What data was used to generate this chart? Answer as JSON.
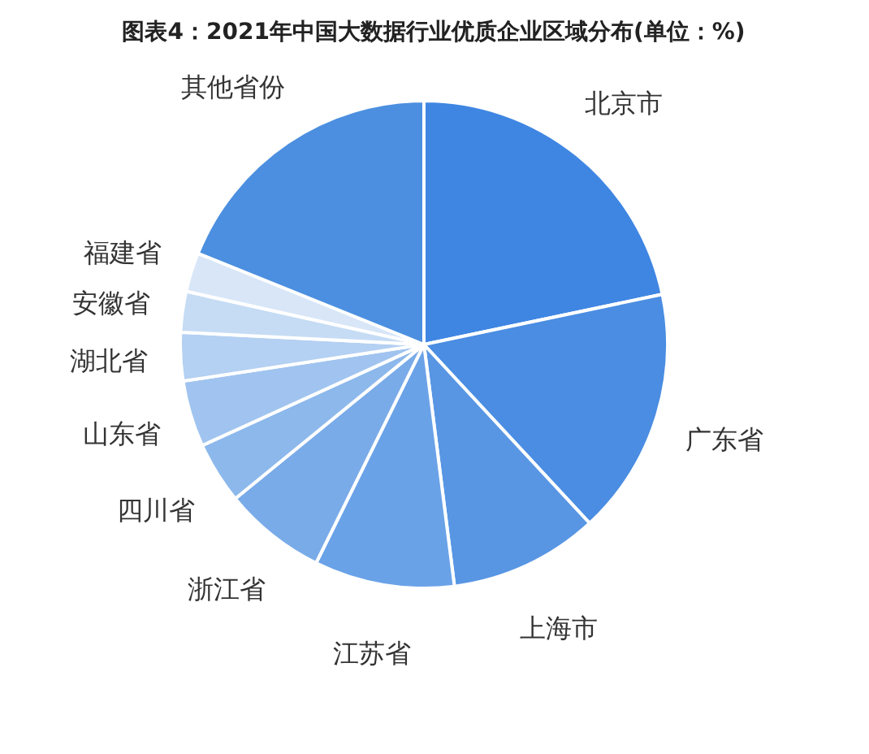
{
  "chart_data": {
    "type": "pie",
    "title": "图表4：2021年中国大数据行业优质企业区域分布(单位：%)",
    "categories": [
      "北京市",
      "广东省",
      "上海市",
      "江苏省",
      "浙江省",
      "四川省",
      "山东省",
      "湖北省",
      "安徽省",
      "福建省",
      "其他省份"
    ],
    "values": [
      21.7,
      16.4,
      9.9,
      9.3,
      6.8,
      4.1,
      4.4,
      3.2,
      2.7,
      2.6,
      18.9
    ],
    "colors": [
      "#3f86e3",
      "#4a8de2",
      "#5896e4",
      "#6aa2e8",
      "#7aabe9",
      "#8cb8ec",
      "#a0c4ef",
      "#b4d0f2",
      "#c6dcf5",
      "#d8e6f8",
      "#4c8fe0"
    ]
  }
}
